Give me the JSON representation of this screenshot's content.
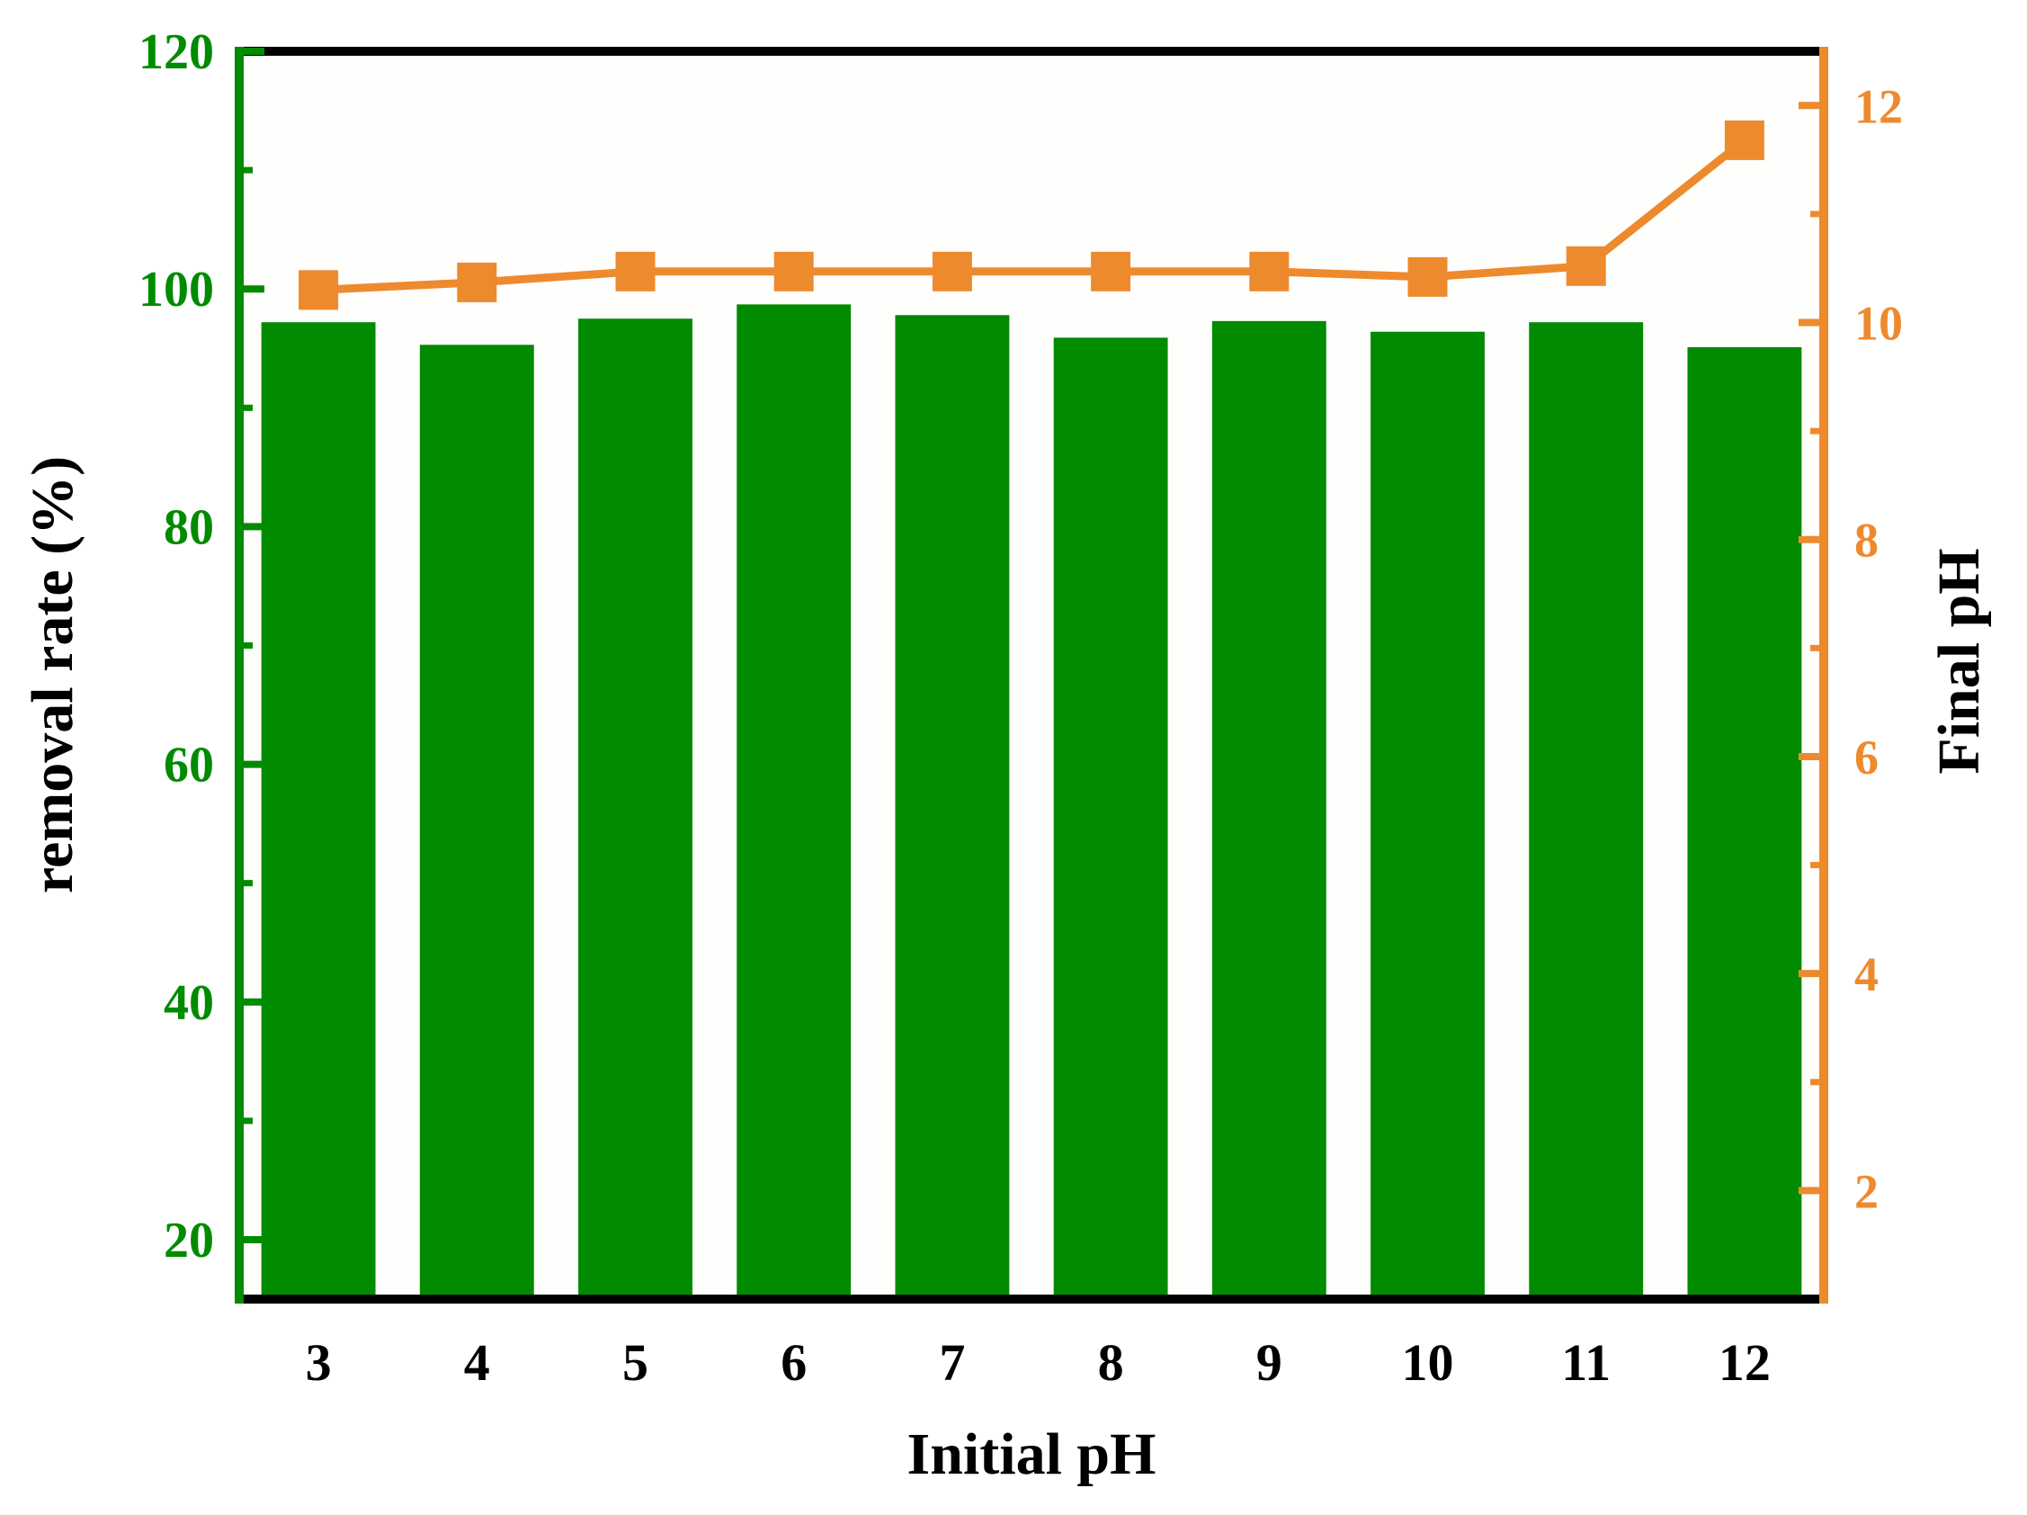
{
  "chart_data": {
    "type": "bar",
    "categories": [
      "3",
      "4",
      "5",
      "6",
      "7",
      "8",
      "9",
      "10",
      "11",
      "12"
    ],
    "xlabel": "Initial pH",
    "y_left": {
      "label": "removal rate (%)",
      "range": [
        15,
        120
      ],
      "ticks": [
        20,
        40,
        60,
        80,
        100,
        120
      ],
      "color": "#008b00"
    },
    "y_right": {
      "label": "Final pH",
      "range": [
        1,
        12.5
      ],
      "ticks": [
        2,
        4,
        6,
        8,
        10,
        12
      ],
      "color": "#ee8a2e"
    },
    "series": [
      {
        "type": "bar",
        "axis": "left",
        "color": "#008b00",
        "values": [
          97.2,
          95.3,
          97.5,
          98.7,
          97.8,
          95.9,
          97.3,
          96.4,
          97.2,
          95.1
        ]
      },
      {
        "type": "line",
        "axis": "right",
        "marker": "square",
        "color": "#ee8a2e",
        "values": [
          10.3,
          10.37,
          10.47,
          10.47,
          10.47,
          10.47,
          10.47,
          10.42,
          10.52,
          11.68
        ]
      }
    ],
    "grid": false,
    "legend": "none"
  }
}
